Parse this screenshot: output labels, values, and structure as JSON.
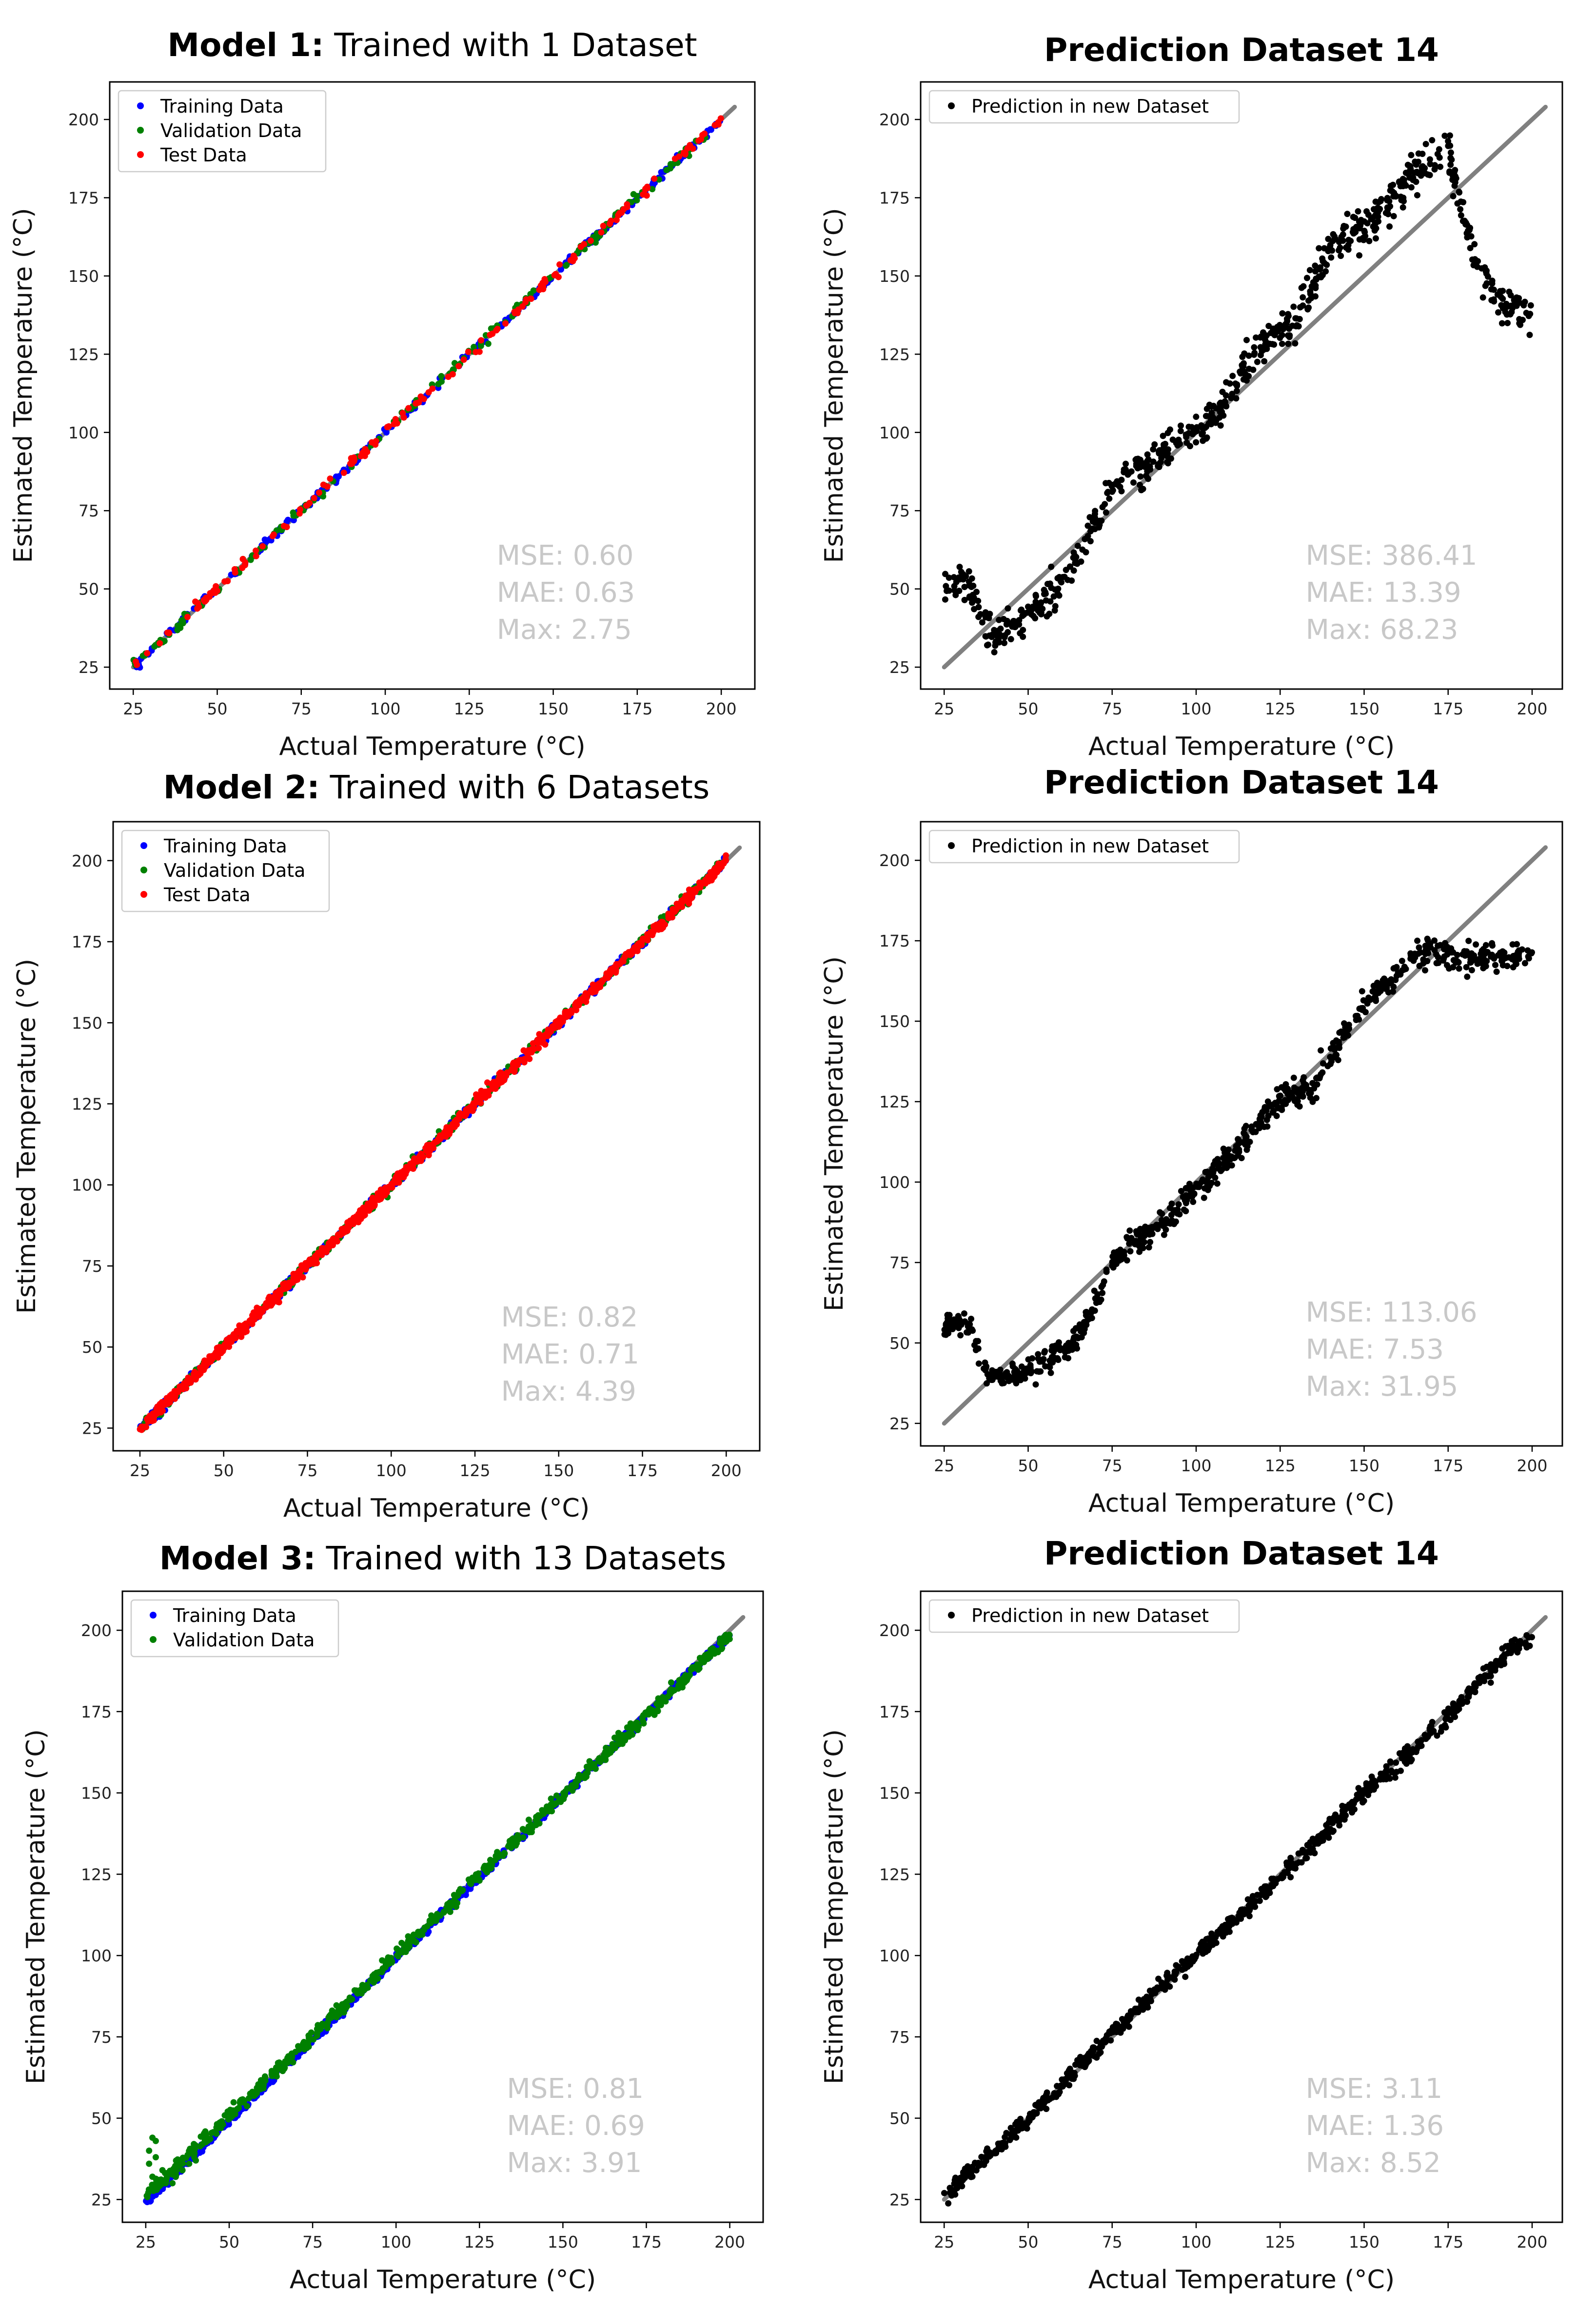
{
  "chart_data": [
    {
      "type": "scatter",
      "title_bold": "Model 1:",
      "title_rest": "Trained with 1 Dataset",
      "xlabel": "Actual Temperature  (°C)",
      "ylabel": "Estimated Temperature  (°C)",
      "xlim": [
        18,
        210
      ],
      "ylim": [
        18,
        212
      ],
      "xticks": [
        25,
        50,
        75,
        100,
        125,
        150,
        175,
        200
      ],
      "yticks": [
        25,
        50,
        75,
        100,
        125,
        150,
        175,
        200
      ],
      "legend_position": "upper-left",
      "reference_line": {
        "x": [
          25,
          204
        ],
        "y": [
          25,
          204
        ],
        "color": "#808080"
      },
      "series": [
        {
          "name": "Training Data",
          "color": "#0000ff",
          "model": "identity",
          "noise": 0.6,
          "x": [
            25,
            200
          ],
          "n": 260
        },
        {
          "name": "Validation Data",
          "color": "#008000",
          "model": "identity",
          "noise": 0.8,
          "x": [
            25,
            200
          ],
          "n": 160
        },
        {
          "name": "Test Data",
          "color": "#ff0000",
          "model": "identity",
          "noise": 0.8,
          "x": [
            25,
            200
          ],
          "n": 160
        }
      ],
      "metrics": [
        "MSE: 0.60",
        "MAE: 0.63",
        "Max: 2.75"
      ]
    },
    {
      "type": "scatter",
      "title_bold": "Prediction Dataset 14",
      "title_rest": "",
      "xlabel": "Actual Temperature  (°C)",
      "ylabel": "Estimated Temperature  (°C)",
      "xlim": [
        18,
        209
      ],
      "ylim": [
        18,
        212
      ],
      "xticks": [
        25,
        50,
        75,
        100,
        125,
        150,
        175,
        200
      ],
      "yticks": [
        25,
        50,
        75,
        100,
        125,
        150,
        175,
        200
      ],
      "legend_position": "upper-left",
      "reference_line": {
        "x": [
          25,
          204
        ],
        "y": [
          25,
          204
        ],
        "color": "#808080"
      },
      "series": [
        {
          "name": "Prediction in new Dataset",
          "color": "#000000",
          "model": "curve",
          "noise": 3,
          "curve": [
            [
              25,
              52
            ],
            [
              30,
              53
            ],
            [
              33,
              50
            ],
            [
              36,
              40
            ],
            [
              40,
              35
            ],
            [
              45,
              38
            ],
            [
              50,
              42
            ],
            [
              55,
              45
            ],
            [
              60,
              52
            ],
            [
              65,
              60
            ],
            [
              70,
              72
            ],
            [
              75,
              82
            ],
            [
              80,
              86
            ],
            [
              85,
              88
            ],
            [
              90,
              92
            ],
            [
              95,
              97
            ],
            [
              100,
              100
            ],
            [
              105,
              105
            ],
            [
              110,
              112
            ],
            [
              115,
              122
            ],
            [
              120,
              128
            ],
            [
              125,
              132
            ],
            [
              130,
              135
            ],
            [
              135,
              148
            ],
            [
              140,
              160
            ],
            [
              145,
              163
            ],
            [
              150,
              166
            ],
            [
              155,
              170
            ],
            [
              160,
              176
            ],
            [
              165,
              183
            ],
            [
              170,
              187
            ],
            [
              175,
              190
            ],
            [
              180,
              168
            ],
            [
              185,
              150
            ],
            [
              190,
              142
            ],
            [
              195,
              140
            ],
            [
              200,
              137
            ]
          ],
          "n": 700
        }
      ],
      "metrics": [
        "MSE: 386.41",
        "MAE: 13.39",
        "Max: 68.23"
      ]
    },
    {
      "type": "scatter",
      "title_bold": "Model 2:",
      "title_rest": "Trained with 6 Datasets",
      "xlabel": "Actual Temperature  (°C)",
      "ylabel": "Estimated Temperature  (°C)",
      "xlim": [
        17,
        210
      ],
      "ylim": [
        18,
        212
      ],
      "xticks": [
        25,
        50,
        75,
        100,
        125,
        150,
        175,
        200
      ],
      "yticks": [
        25,
        50,
        75,
        100,
        125,
        150,
        175,
        200
      ],
      "legend_position": "upper-left",
      "reference_line": {
        "x": [
          25,
          204
        ],
        "y": [
          25,
          204
        ],
        "color": "#808080"
      },
      "series": [
        {
          "name": "Training Data",
          "color": "#0000ff",
          "model": "identity",
          "noise": 0.7,
          "x": [
            25,
            200
          ],
          "n": 450
        },
        {
          "name": "Validation Data",
          "color": "#008000",
          "model": "identity",
          "noise": 0.9,
          "x": [
            25,
            200
          ],
          "n": 350
        },
        {
          "name": "Test Data",
          "color": "#ff0000",
          "model": "identity",
          "noise": 0.8,
          "x": [
            25,
            200
          ],
          "n": 900
        }
      ],
      "metrics": [
        "MSE: 0.82",
        "MAE: 0.71",
        "Max: 4.39"
      ]
    },
    {
      "type": "scatter",
      "title_bold": "Prediction Dataset 14",
      "title_rest": "",
      "xlabel": "Actual Temperature  (°C)",
      "ylabel": "Estimated Temperature  (°C)",
      "xlim": [
        18,
        209
      ],
      "ylim": [
        18,
        212
      ],
      "xticks": [
        25,
        50,
        75,
        100,
        125,
        150,
        175,
        200
      ],
      "yticks": [
        25,
        50,
        75,
        100,
        125,
        150,
        175,
        200
      ],
      "legend_position": "upper-left",
      "reference_line": {
        "x": [
          25,
          204
        ],
        "y": [
          25,
          204
        ],
        "color": "#808080"
      },
      "series": [
        {
          "name": "Prediction in new Dataset",
          "color": "#000000",
          "model": "curve",
          "noise": 2,
          "curve": [
            [
              25,
              55
            ],
            [
              30,
              57
            ],
            [
              33,
              55
            ],
            [
              36,
              42
            ],
            [
              40,
              38
            ],
            [
              45,
              40
            ],
            [
              50,
              42
            ],
            [
              55,
              45
            ],
            [
              60,
              47
            ],
            [
              65,
              52
            ],
            [
              70,
              62
            ],
            [
              75,
              75
            ],
            [
              80,
              80
            ],
            [
              85,
              83
            ],
            [
              90,
              87
            ],
            [
              95,
              92
            ],
            [
              100,
              97
            ],
            [
              105,
              103
            ],
            [
              110,
              108
            ],
            [
              115,
              113
            ],
            [
              120,
              120
            ],
            [
              125,
              125
            ],
            [
              130,
              128
            ],
            [
              135,
              130
            ],
            [
              140,
              138
            ],
            [
              145,
              148
            ],
            [
              150,
              155
            ],
            [
              155,
              160
            ],
            [
              160,
              165
            ],
            [
              165,
              170
            ],
            [
              170,
              173
            ],
            [
              175,
              170
            ],
            [
              180,
              170
            ],
            [
              190,
              170
            ],
            [
              200,
              171
            ]
          ],
          "n": 750
        }
      ],
      "metrics": [
        "MSE: 113.06",
        "MAE: 7.53",
        "Max: 31.95"
      ]
    },
    {
      "type": "scatter",
      "title_bold": "Model 3:",
      "title_rest": "Trained with 13 Datasets",
      "xlabel": "Actual Temperature  (°C)",
      "ylabel": "Estimated Temperature  (°C)",
      "xlim": [
        18,
        210
      ],
      "ylim": [
        18,
        212
      ],
      "xticks": [
        25,
        50,
        75,
        100,
        125,
        150,
        175,
        200
      ],
      "yticks": [
        25,
        50,
        75,
        100,
        125,
        150,
        175,
        200
      ],
      "legend_position": "upper-left",
      "reference_line": {
        "x": [
          25,
          204
        ],
        "y": [
          25,
          204
        ],
        "color": "#808080"
      },
      "series": [
        {
          "name": "Training Data",
          "color": "#0000ff",
          "model": "linear",
          "slope": 1.0,
          "offset": -1.0,
          "noise": 0.6,
          "x": [
            25,
            200
          ],
          "n": 650
        },
        {
          "name": "Validation Data",
          "color": "#008000",
          "model": "linear",
          "slope": 0.985,
          "offset": 1.5,
          "noise": 1.0,
          "x": [
            25,
            200
          ],
          "n": 650,
          "extra_points": [
            [
              26,
              40
            ],
            [
              27,
              44
            ],
            [
              28,
              43
            ],
            [
              26,
              36
            ],
            [
              28,
              38
            ],
            [
              30,
              34
            ],
            [
              27,
              32
            ],
            [
              29,
              31
            ],
            [
              31,
              30
            ],
            [
              32,
              33
            ],
            [
              34,
              32
            ],
            [
              33,
              30
            ],
            [
              36,
              34
            ],
            [
              38,
              36
            ],
            [
              40,
              37
            ]
          ]
        }
      ],
      "metrics": [
        "MSE: 0.81",
        "MAE: 0.69",
        "Max: 3.91"
      ]
    },
    {
      "type": "scatter",
      "title_bold": "Prediction Dataset 14",
      "title_rest": "",
      "xlabel": "Actual Temperature  (°C)",
      "ylabel": "Estimated Temperature  (°C)",
      "xlim": [
        18,
        209
      ],
      "ylim": [
        18,
        212
      ],
      "xticks": [
        25,
        50,
        75,
        100,
        125,
        150,
        175,
        200
      ],
      "yticks": [
        25,
        50,
        75,
        100,
        125,
        150,
        175,
        200
      ],
      "legend_position": "upper-left",
      "reference_line": {
        "x": [
          25,
          204
        ],
        "y": [
          25,
          204
        ],
        "color": "#808080"
      },
      "series": [
        {
          "name": "Prediction in new Dataset",
          "color": "#000000",
          "model": "curve",
          "noise": 1.3,
          "curve": [
            [
              25,
              26
            ],
            [
              50,
              50
            ],
            [
              75,
              76
            ],
            [
              100,
              100
            ],
            [
              125,
              124
            ],
            [
              150,
              150
            ],
            [
              175,
              173
            ],
            [
              185,
              185
            ],
            [
              190,
              190
            ],
            [
              195,
              195
            ],
            [
              200,
              198
            ]
          ],
          "n": 750
        }
      ],
      "metrics": [
        "MSE: 3.11",
        "MAE: 1.36",
        "Max: 8.52"
      ]
    }
  ]
}
